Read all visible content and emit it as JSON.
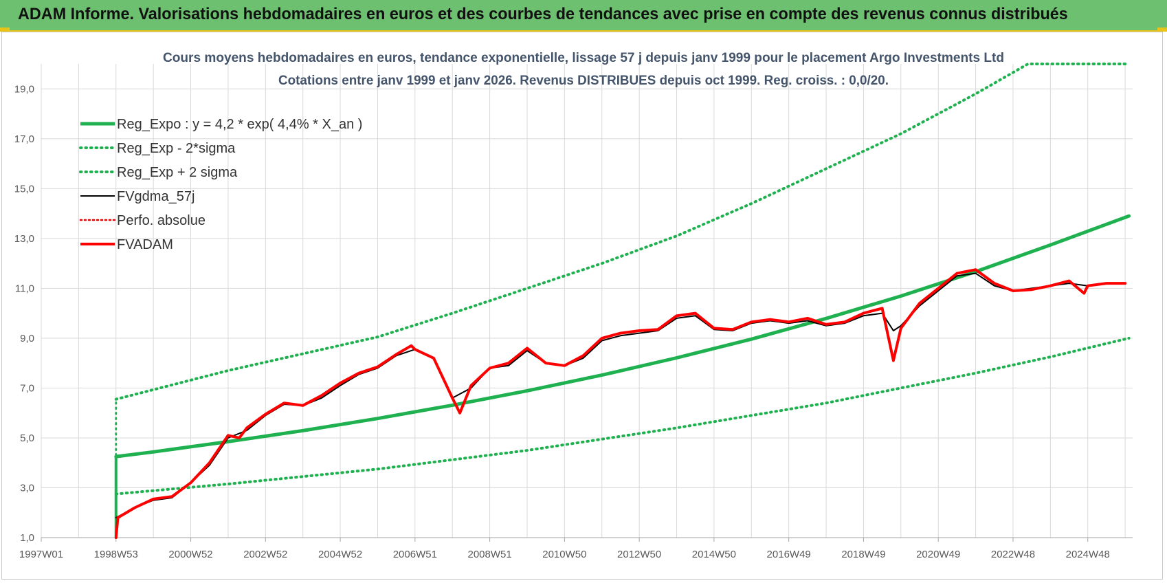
{
  "banner": {
    "title": "ADAM Informe. Valorisations hebdomadaires en euros et des courbes de tendances avec prise en compte des revenus connus distribués",
    "background": "#6cc06f"
  },
  "colors": {
    "trend": "#1fb150",
    "band": "#1fb150",
    "gdma": "#000000",
    "perfo": "#e00000",
    "fvadam": "#ff0000",
    "grid": "#d9d9d9",
    "title": "#44546a"
  },
  "chart_data": {
    "type": "line",
    "title": "Cours moyens hebdomadaires en euros, tendance exponentielle, lissage 57 j depuis janv 1999 pour le placement Argo Investments Ltd",
    "subtitle": "Cotations entre janv 1999 et janv 2026. Revenus DISTRIBUES depuis oct 1999. Reg. croiss. : 0,0/20.",
    "xlabel": "",
    "ylabel": "",
    "ylim": [
      1.0,
      20.0
    ],
    "xlim": [
      1997.0,
      2026.2
    ],
    "grid": true,
    "legend_position": "top-left",
    "x_tick_labels": [
      "1997W01",
      "1998W53",
      "2000W52",
      "2002W52",
      "2004W52",
      "2006W51",
      "2008W51",
      "2010W50",
      "2012W50",
      "2014W50",
      "2016W49",
      "2018W49",
      "2020W49",
      "2022W48",
      "2024W48"
    ],
    "y_tick_labels": [
      "1,0",
      "3,0",
      "5,0",
      "7,0",
      "9,0",
      "11,0",
      "13,0",
      "15,0",
      "17,0",
      "19,0"
    ],
    "y_ticks": [
      1,
      3,
      5,
      7,
      9,
      11,
      13,
      15,
      17,
      19
    ],
    "series": [
      {
        "name": "Reg_Expo : y = 4,2 * exp( 4,4% *  X_an )",
        "style": "thick-solid",
        "x": [
          1999.0,
          2000.0,
          2002.0,
          2004.0,
          2006.0,
          2008.0,
          2010.0,
          2012.0,
          2014.0,
          2016.0,
          2018.0,
          2020.0,
          2022.0,
          2024.0,
          2026.1
        ],
        "y": [
          4.25,
          4.44,
          4.85,
          5.29,
          5.78,
          6.31,
          6.89,
          7.52,
          8.21,
          8.96,
          9.79,
          10.69,
          11.67,
          12.74,
          13.9
        ]
      },
      {
        "name": "Reg_Exp - 2*sigma",
        "style": "dotted",
        "x": [
          1999.0,
          2002.0,
          2006.0,
          2010.0,
          2014.0,
          2018.0,
          2020.0,
          2022.0,
          2024.0,
          2026.1
        ],
        "y": [
          2.75,
          3.15,
          3.75,
          4.5,
          5.4,
          6.4,
          7.0,
          7.6,
          8.25,
          9.0
        ]
      },
      {
        "name": "Reg_Exp + 2 sigma",
        "style": "dotted",
        "x": [
          1999.0,
          2002.0,
          2006.0,
          2008.0,
          2010.0,
          2012.0,
          2014.0,
          2016.0,
          2018.0,
          2020.0,
          2022.0,
          2023.4,
          2026.1
        ],
        "y": [
          6.55,
          7.7,
          9.05,
          10.0,
          11.0,
          12.0,
          13.1,
          14.4,
          15.8,
          17.2,
          18.8,
          20.0,
          20.0
        ]
      },
      {
        "name": "FVgdma_57j",
        "style": "thin-solid",
        "x": [
          1999.0,
          1999.5,
          2000.0,
          2000.5,
          2001.0,
          2001.5,
          2002.0,
          2002.5,
          2003.0,
          2003.5,
          2004.0,
          2004.5,
          2005.0,
          2005.5,
          2006.0,
          2006.5,
          2007.0,
          2007.5,
          2008.0,
          2008.5,
          2009.0,
          2009.5,
          2010.0,
          2010.5,
          2011.0,
          2011.5,
          2012.0,
          2012.5,
          2013.0,
          2013.5,
          2014.0,
          2014.5,
          2015.0,
          2015.5,
          2016.0,
          2016.5,
          2017.0,
          2017.5,
          2018.0,
          2018.5,
          2019.0,
          2019.5,
          2019.8,
          2020.0,
          2020.5,
          2021.0,
          2021.5,
          2022.0,
          2022.5,
          2023.0,
          2023.5,
          2024.0,
          2024.5,
          2025.0,
          2025.5,
          2026.0
        ],
        "y": [
          1.8,
          2.2,
          2.5,
          2.6,
          3.2,
          3.9,
          5.0,
          5.3,
          5.9,
          6.35,
          6.3,
          6.6,
          7.1,
          7.55,
          7.8,
          8.3,
          8.55,
          8.2,
          6.6,
          7.0,
          7.8,
          7.9,
          8.5,
          8.0,
          7.9,
          8.2,
          8.9,
          9.1,
          9.2,
          9.3,
          9.8,
          9.9,
          9.35,
          9.3,
          9.6,
          9.7,
          9.6,
          9.7,
          9.5,
          9.6,
          9.9,
          10.0,
          9.3,
          9.5,
          10.3,
          10.9,
          11.5,
          11.6,
          11.1,
          10.9,
          11.0,
          11.1,
          11.2,
          11.1,
          11.2,
          11.2
        ]
      },
      {
        "name": "Perfo. absolue",
        "style": "dotted",
        "x": [],
        "y": []
      },
      {
        "name": "FVADAM",
        "style": "thick-solid",
        "x": [
          1999.0,
          1999.05,
          1999.5,
          2000.0,
          2000.5,
          2001.0,
          2001.5,
          2002.0,
          2002.3,
          2002.5,
          2003.0,
          2003.5,
          2004.0,
          2004.5,
          2005.0,
          2005.5,
          2006.0,
          2006.5,
          2006.9,
          2007.0,
          2007.5,
          2008.0,
          2008.2,
          2008.5,
          2009.0,
          2009.5,
          2010.0,
          2010.5,
          2011.0,
          2011.5,
          2012.0,
          2012.5,
          2013.0,
          2013.5,
          2014.0,
          2014.5,
          2015.0,
          2015.5,
          2016.0,
          2016.5,
          2017.0,
          2017.5,
          2018.0,
          2018.5,
          2019.0,
          2019.5,
          2019.8,
          2020.0,
          2020.5,
          2021.0,
          2021.5,
          2022.0,
          2022.5,
          2023.0,
          2023.5,
          2024.0,
          2024.5,
          2024.9,
          2025.0,
          2025.5,
          2026.0
        ],
        "y": [
          1.0,
          1.8,
          2.2,
          2.55,
          2.65,
          3.2,
          4.0,
          5.1,
          5.0,
          5.4,
          5.95,
          6.4,
          6.3,
          6.7,
          7.2,
          7.6,
          7.85,
          8.35,
          8.7,
          8.55,
          8.2,
          6.6,
          6.0,
          7.1,
          7.8,
          8.0,
          8.6,
          8.0,
          7.9,
          8.3,
          9.0,
          9.2,
          9.3,
          9.35,
          9.9,
          10.0,
          9.4,
          9.35,
          9.65,
          9.75,
          9.65,
          9.8,
          9.55,
          9.65,
          10.0,
          10.2,
          8.1,
          9.4,
          10.4,
          11.0,
          11.6,
          11.75,
          11.2,
          10.9,
          10.95,
          11.1,
          11.3,
          10.8,
          11.1,
          11.2,
          11.2
        ]
      }
    ]
  }
}
